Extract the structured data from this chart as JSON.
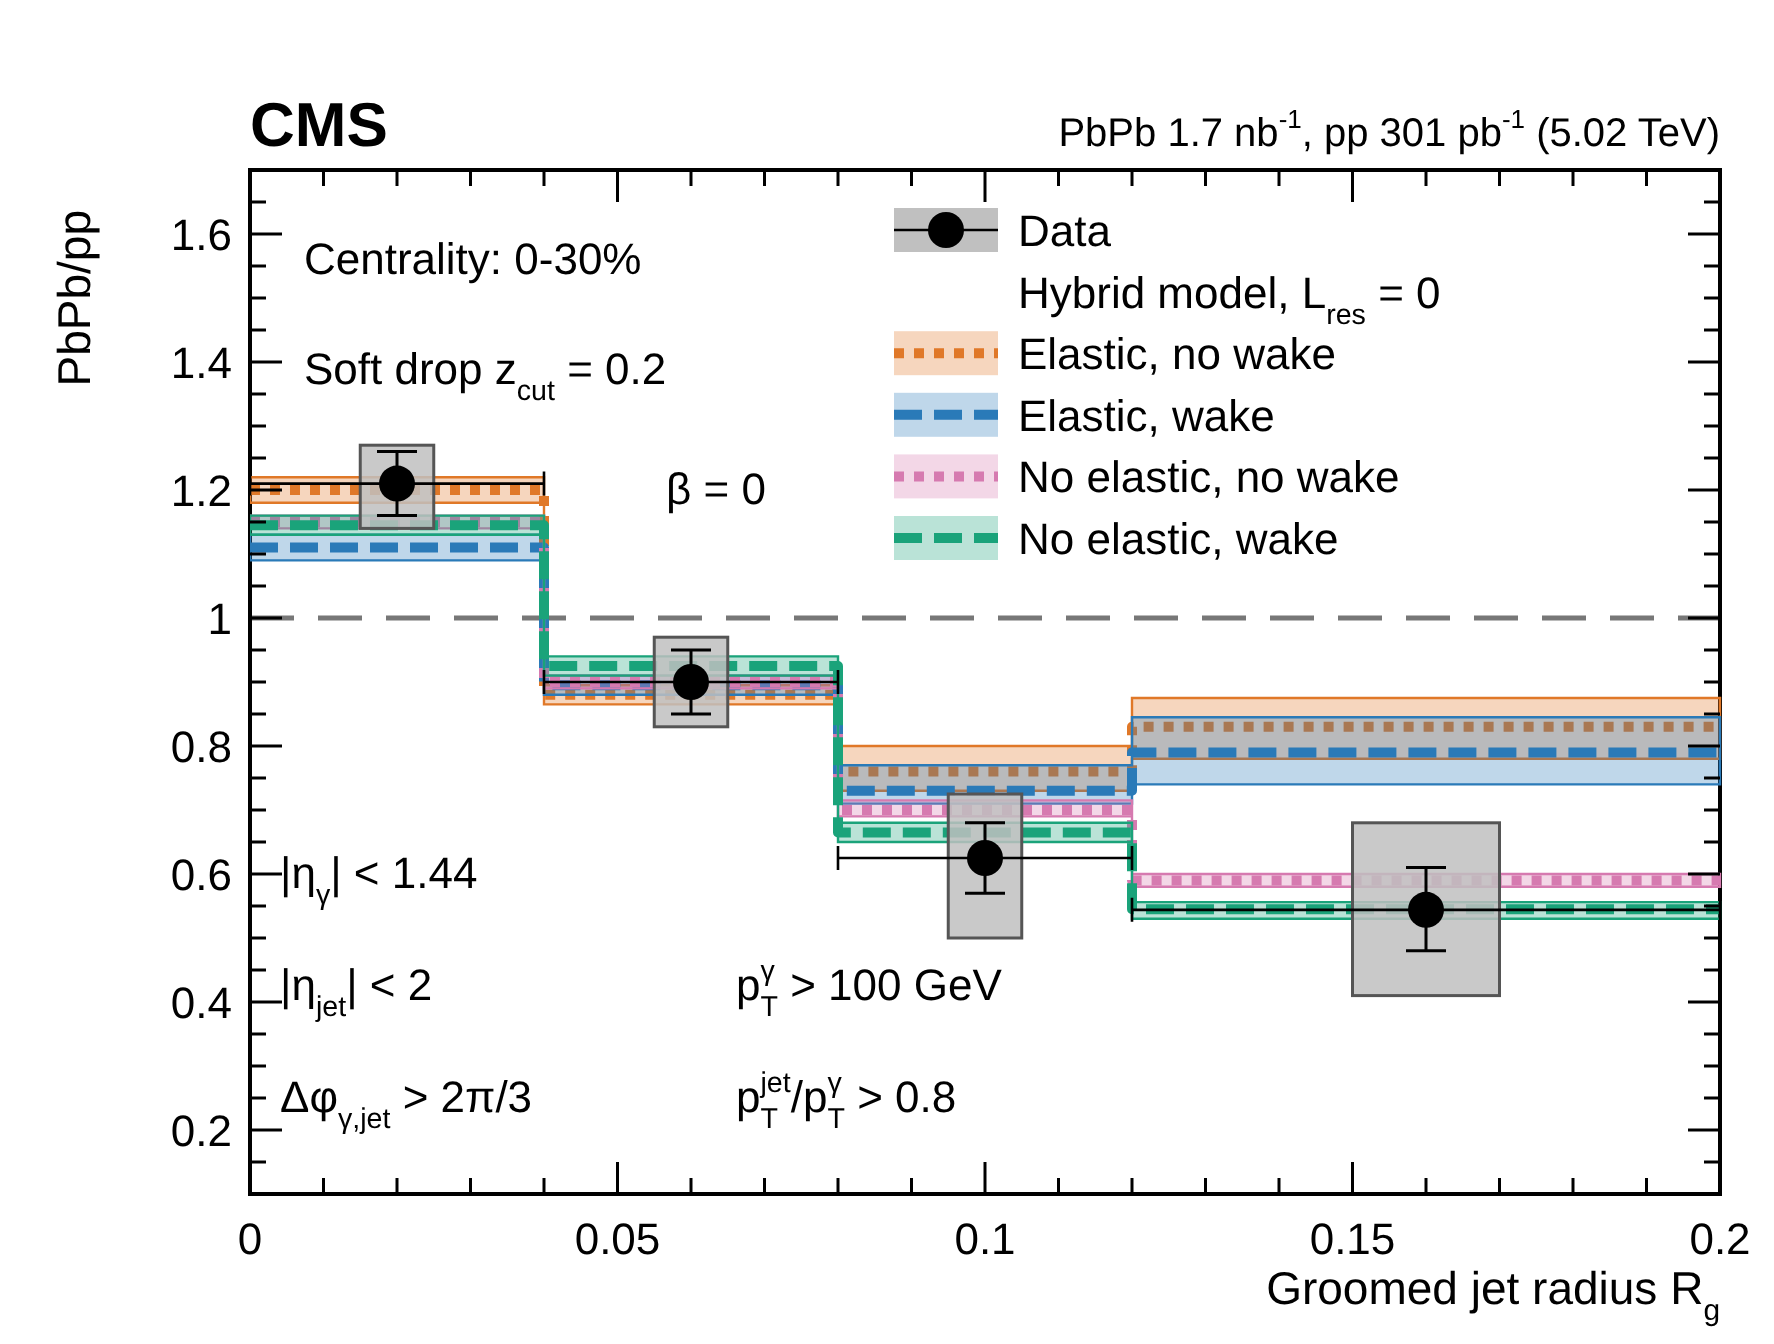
{
  "chart_data": {
    "type": "scatter",
    "title": "CMS",
    "subtitle": "PbPb 1.7 nb$^{-1}$, pp 301 pb$^{-1}$ (5.02 TeV)",
    "xlabel": "Groomed jet radius R$_{g}$",
    "ylabel": "PbPb/pp",
    "legend_title": "Hybrid model, L$_{res}$ = 0",
    "xlim": [
      0,
      0.2
    ],
    "ylim": [
      0.1,
      1.7
    ],
    "xticks": [
      0,
      {
        "value": 0.01,
        "label": null
      },
      {
        "value": 0.02,
        "label": null
      },
      {
        "value": 0.03,
        "label": null
      },
      {
        "value": 0.04,
        "label": null
      },
      0.05,
      {
        "value": 0.06,
        "label": null
      },
      {
        "value": 0.07,
        "label": null
      },
      {
        "value": 0.08,
        "label": null
      },
      {
        "value": 0.09,
        "label": null
      },
      0.1,
      {
        "value": 0.11,
        "label": null
      },
      {
        "value": 0.12,
        "label": null
      },
      {
        "value": 0.13,
        "label": null
      },
      {
        "value": 0.14,
        "label": null
      },
      0.15,
      {
        "value": 0.16,
        "label": null
      },
      {
        "value": 0.17,
        "label": null
      },
      {
        "value": 0.18,
        "label": null
      },
      {
        "value": 0.19,
        "label": null
      },
      0.2
    ],
    "yticks": [
      {
        "value": 0.15,
        "label": null
      },
      0.2,
      {
        "value": 0.25,
        "label": null
      },
      {
        "value": 0.3,
        "label": null
      },
      {
        "value": 0.35,
        "label": null
      },
      0.4,
      {
        "value": 0.45,
        "label": null
      },
      {
        "value": 0.5,
        "label": null
      },
      {
        "value": 0.55,
        "label": null
      },
      0.6,
      {
        "value": 0.65,
        "label": null
      },
      {
        "value": 0.7,
        "label": null
      },
      {
        "value": 0.75,
        "label": null
      },
      0.8,
      {
        "value": 0.85,
        "label": null
      },
      {
        "value": 0.9,
        "label": null
      },
      {
        "value": 0.95,
        "label": null
      },
      1,
      {
        "value": 1.05,
        "label": null
      },
      {
        "value": 1.1,
        "label": null
      },
      {
        "value": 1.15,
        "label": null
      },
      1.2,
      {
        "value": 1.25,
        "label": null
      },
      {
        "value": 1.3,
        "label": null
      },
      {
        "value": 1.35,
        "label": null
      },
      1.4,
      {
        "value": 1.45,
        "label": null
      },
      {
        "value": 1.5,
        "label": null
      },
      {
        "value": 1.55,
        "label": null
      },
      1.6,
      {
        "value": 1.65,
        "label": null
      }
    ],
    "legend": "top right",
    "grid": false,
    "ref_lines": [
      {
        "axis": "y",
        "value": 1,
        "label": null,
        "color": "#777777",
        "line_style": "dashed"
      }
    ],
    "annotations": [
      "Centrality: 0-30%",
      "Soft drop z$_{cut}$ = 0.2",
      "β = 0",
      "|η$_{γ}$| < 1.44",
      "|η$_{jet}$| < 2",
      "Δφ$_{γ,jet}$ > 2π/3",
      "p$^{γ}$$_{T}$ > 100 GeV",
      "p$^{jet}$$_{T}$/p$^{γ}$$_{T}$ > 0.8"
    ],
    "series": [
      {
        "type": "bar",
        "color": "#c0c0c0",
        "x": [
          0.02,
          0.06,
          0.1,
          0.16
        ],
        "base": [
          1.14,
          0.83,
          0.5,
          0.41
        ],
        "values": [
          0.13,
          0.14,
          0.225,
          0.27
        ]
      },
      {
        "type": "step",
        "name": "Elastic, no wake",
        "color": "#e07828",
        "line_style": "dotted",
        "x": [
          0,
          0.04,
          0.08,
          0.12,
          0.2
        ],
        "values": [
          1.2,
          0.88,
          0.76,
          0.83,
          0.83
        ],
        "lower": [
          1.18,
          0.865,
          0.73,
          0.78,
          0.78
        ],
        "upper": [
          1.22,
          0.895,
          0.8,
          0.875,
          0.875
        ]
      },
      {
        "type": "step",
        "name": "Elastic, wake",
        "color": "#2a7ab8",
        "line_style": "dashed",
        "x": [
          0,
          0.04,
          0.08,
          0.12,
          0.2
        ],
        "values": [
          1.11,
          0.895,
          0.73,
          0.79,
          0.79
        ],
        "lower": [
          1.09,
          0.88,
          0.71,
          0.74,
          0.74
        ],
        "upper": [
          1.13,
          0.91,
          0.77,
          0.845,
          0.845
        ]
      },
      {
        "type": "step",
        "name": "No elastic, no wake",
        "color": "#d67ab0",
        "line_style": "dotted",
        "x": [
          0,
          0.04,
          0.08,
          0.12,
          0.2
        ],
        "values": [
          1.15,
          0.9,
          0.7,
          0.59,
          0.59
        ],
        "lower": [
          1.14,
          0.89,
          0.69,
          0.58,
          0.58
        ],
        "upper": [
          1.16,
          0.91,
          0.715,
          0.6,
          0.6
        ]
      },
      {
        "type": "step",
        "name": "No elastic, wake",
        "color": "#1aa37a",
        "line_style": "dashed",
        "x": [
          0,
          0.04,
          0.08,
          0.12,
          0.2
        ],
        "values": [
          1.145,
          0.925,
          0.665,
          0.545,
          0.545
        ],
        "lower": [
          1.13,
          0.91,
          0.65,
          0.53,
          0.53
        ],
        "upper": [
          1.16,
          0.94,
          0.68,
          0.556,
          0.556
        ]
      },
      {
        "name": "Data",
        "color": "#000000",
        "marker": "circle",
        "x": [
          0.02,
          0.06,
          0.1,
          0.16
        ],
        "values": [
          1.21,
          0.9,
          0.625,
          0.544
        ],
        "errors": [
          [
            1.16,
            1.26
          ],
          [
            0.85,
            0.95
          ],
          [
            0.57,
            0.68
          ],
          [
            0.48,
            0.61
          ]
        ],
        "xerrors": [
          0.02,
          0.02,
          0.02,
          0.04
        ]
      }
    ]
  }
}
